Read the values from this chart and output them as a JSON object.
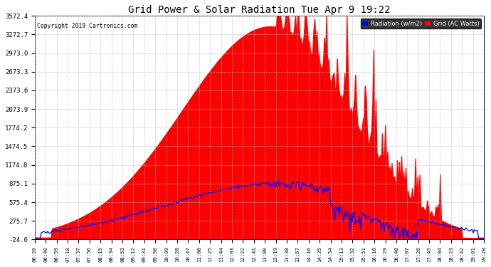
{
  "title": "Grid Power & Solar Radiation Tue Apr 9 19:22",
  "copyright": "Copyright 2019 Cartronics.com",
  "legend_labels": [
    "Radiation (w/m2)",
    "Grid (AC Watts)"
  ],
  "legend_colors": [
    "#0000ff",
    "#ff0000"
  ],
  "legend_bg": "#000000",
  "ymin": -24.0,
  "ymax": 3572.4,
  "yticks": [
    -24.0,
    275.7,
    575.4,
    875.1,
    1174.8,
    1474.5,
    1774.2,
    2073.9,
    2373.6,
    2673.3,
    2973.0,
    3272.7,
    3572.4
  ],
  "background_color": "#ffffff",
  "grid_color": "#bbbbbb",
  "fill_color": "#ff0000",
  "line_color_radiation": "#0000ff",
  "figwidth": 6.9,
  "figheight": 3.75,
  "dpi": 100
}
